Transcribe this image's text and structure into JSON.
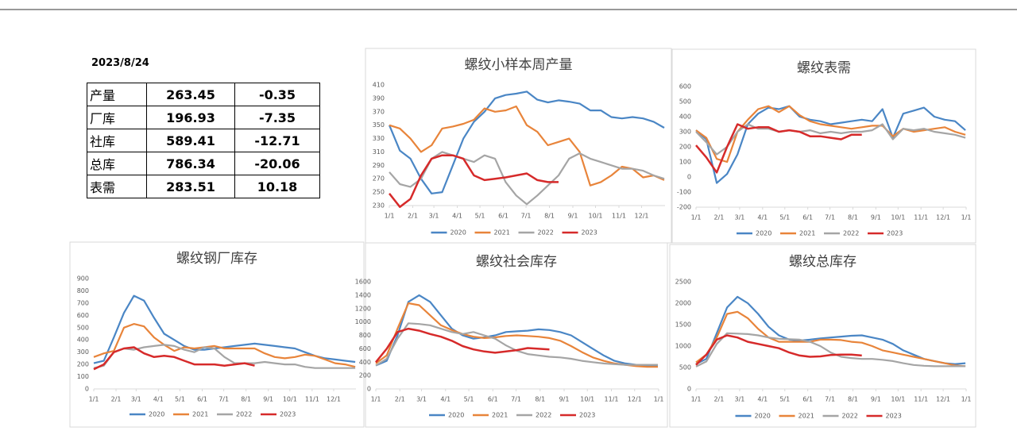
{
  "date": "2023/8/24",
  "table": {
    "rows": [
      [
        "产量",
        "263.45",
        "-0.35"
      ],
      [
        "厂库",
        "196.93",
        "-7.35"
      ],
      [
        "社库",
        "589.41",
        "-12.71"
      ],
      [
        "总库",
        "786.34",
        "-20.06"
      ],
      [
        "表需",
        "283.51",
        "10.18"
      ]
    ]
  },
  "chart_data": [
    {
      "type": "line",
      "title": "螺纹小样本周产量",
      "x": [
        0,
        14,
        28,
        42,
        56,
        70,
        84,
        98,
        112,
        126,
        140,
        154,
        168,
        182,
        196,
        210,
        224,
        238,
        252,
        266,
        280,
        294,
        308,
        322,
        336,
        350,
        364
      ],
      "xlim": [
        0,
        365
      ],
      "xticks": [
        {
          "value": 0,
          "label": "1/1"
        },
        {
          "value": 31,
          "label": "2/1"
        },
        {
          "value": 59,
          "label": "3/1"
        },
        {
          "value": 90,
          "label": "4/1"
        },
        {
          "value": 120,
          "label": "5/1"
        },
        {
          "value": 151,
          "label": "6/1"
        },
        {
          "value": 181,
          "label": "7/1"
        },
        {
          "value": 212,
          "label": "8/1"
        },
        {
          "value": 243,
          "label": "9/1"
        },
        {
          "value": 273,
          "label": "10/1"
        },
        {
          "value": 304,
          "label": "11/1"
        },
        {
          "value": 334,
          "label": "12/1"
        }
      ],
      "ylim": [
        230,
        410
      ],
      "yticks": [
        230,
        250,
        270,
        290,
        310,
        330,
        350,
        370,
        390,
        410
      ],
      "series": [
        {
          "name": "2020",
          "color": "#4a86c5",
          "values": [
            350,
            312,
            300,
            270,
            248,
            250,
            290,
            330,
            355,
            370,
            390,
            395,
            397,
            400,
            388,
            384,
            387,
            385,
            382,
            372,
            372,
            362,
            360,
            362,
            360,
            355,
            346
          ]
        },
        {
          "name": "2021",
          "color": "#e8843a",
          "values": [
            350,
            345,
            330,
            310,
            320,
            345,
            348,
            352,
            358,
            375,
            370,
            372,
            378,
            350,
            340,
            320,
            325,
            330,
            310,
            260,
            265,
            275,
            288,
            285,
            272,
            275,
            268
          ]
        },
        {
          "name": "2022",
          "color": "#a5a5a5",
          "values": [
            280,
            262,
            258,
            270,
            300,
            310,
            305,
            300,
            295,
            305,
            300,
            265,
            245,
            232,
            245,
            260,
            275,
            300,
            308,
            300,
            295,
            290,
            285,
            285,
            282,
            275,
            270
          ]
        },
        {
          "name": "2023",
          "color": "#d62a2a",
          "values": [
            248,
            228,
            240,
            275,
            300,
            305,
            305,
            300,
            275,
            268,
            270,
            272,
            275,
            278,
            268,
            265,
            265,
            null,
            null,
            null,
            null,
            null,
            null,
            null,
            null,
            null,
            null
          ]
        }
      ]
    },
    {
      "type": "line",
      "title": "螺纹表需",
      "x": [
        0,
        14,
        28,
        42,
        56,
        70,
        84,
        98,
        112,
        126,
        140,
        154,
        168,
        182,
        196,
        210,
        224,
        238,
        252,
        266,
        280,
        294,
        308,
        322,
        336,
        350,
        364
      ],
      "xlim": [
        0,
        365
      ],
      "xticks": [
        {
          "value": 0,
          "label": "1/1"
        },
        {
          "value": 31,
          "label": "2/1"
        },
        {
          "value": 59,
          "label": "3/1"
        },
        {
          "value": 90,
          "label": "4/1"
        },
        {
          "value": 120,
          "label": "5/1"
        },
        {
          "value": 151,
          "label": "6/1"
        },
        {
          "value": 181,
          "label": "7/1"
        },
        {
          "value": 212,
          "label": "8/1"
        },
        {
          "value": 243,
          "label": "9/1"
        },
        {
          "value": 273,
          "label": "10/1"
        },
        {
          "value": 304,
          "label": "11/1"
        },
        {
          "value": 334,
          "label": "12/1"
        },
        {
          "value": 365,
          "label": "1/1"
        }
      ],
      "ylim": [
        -200,
        600
      ],
      "yticks": [
        -200,
        -100,
        0,
        100,
        200,
        300,
        400,
        500,
        600
      ],
      "series": [
        {
          "name": "2020",
          "color": "#4a86c5",
          "values": [
            310,
            250,
            -40,
            20,
            150,
            350,
            420,
            460,
            450,
            470,
            400,
            380,
            370,
            350,
            360,
            370,
            380,
            370,
            450,
            260,
            420,
            440,
            460,
            400,
            380,
            370,
            310
          ]
        },
        {
          "name": "2021",
          "color": "#e8843a",
          "values": [
            310,
            260,
            120,
            100,
            300,
            380,
            450,
            470,
            430,
            470,
            410,
            370,
            350,
            340,
            330,
            320,
            330,
            340,
            340,
            270,
            320,
            300,
            310,
            320,
            330,
            300,
            280
          ]
        },
        {
          "name": "2022",
          "color": "#a5a5a5",
          "values": [
            300,
            230,
            150,
            200,
            300,
            350,
            320,
            320,
            300,
            310,
            300,
            310,
            290,
            300,
            290,
            300,
            300,
            310,
            350,
            250,
            320,
            310,
            320,
            300,
            290,
            280,
            260
          ]
        },
        {
          "name": "2023",
          "color": "#d62a2a",
          "values": [
            210,
            130,
            30,
            200,
            350,
            320,
            330,
            330,
            300,
            310,
            300,
            270,
            270,
            260,
            250,
            280,
            280,
            null,
            null,
            null,
            null,
            null,
            null,
            null,
            null,
            null,
            null
          ]
        }
      ]
    },
    {
      "type": "line",
      "title": "螺纹钢厂库存",
      "x": [
        0,
        14,
        28,
        42,
        56,
        70,
        84,
        98,
        112,
        126,
        140,
        154,
        168,
        182,
        196,
        210,
        224,
        238,
        252,
        266,
        280,
        294,
        308,
        322,
        336,
        350,
        364
      ],
      "xlim": [
        0,
        365
      ],
      "xticks": [
        {
          "value": 0,
          "label": "1/1"
        },
        {
          "value": 31,
          "label": "2/1"
        },
        {
          "value": 59,
          "label": "3/1"
        },
        {
          "value": 90,
          "label": "4/1"
        },
        {
          "value": 120,
          "label": "5/1"
        },
        {
          "value": 151,
          "label": "6/1"
        },
        {
          "value": 181,
          "label": "7/1"
        },
        {
          "value": 212,
          "label": "8/1"
        },
        {
          "value": 243,
          "label": "9/1"
        },
        {
          "value": 273,
          "label": "10/1"
        },
        {
          "value": 304,
          "label": "11/1"
        },
        {
          "value": 334,
          "label": "12/1"
        }
      ],
      "ylim": [
        0,
        900
      ],
      "yticks": [
        0,
        100,
        200,
        300,
        400,
        500,
        600,
        700,
        800,
        900
      ],
      "series": [
        {
          "name": "2020",
          "color": "#4a86c5",
          "values": [
            210,
            230,
            420,
            620,
            760,
            720,
            580,
            450,
            400,
            350,
            320,
            320,
            330,
            340,
            350,
            360,
            370,
            360,
            350,
            340,
            330,
            300,
            270,
            250,
            240,
            230,
            220
          ]
        },
        {
          "name": "2021",
          "color": "#e8843a",
          "values": [
            260,
            290,
            310,
            500,
            530,
            510,
            420,
            360,
            310,
            340,
            330,
            340,
            350,
            330,
            330,
            330,
            330,
            290,
            260,
            250,
            260,
            280,
            270,
            240,
            210,
            200,
            180
          ]
        },
        {
          "name": "2022",
          "color": "#a5a5a5",
          "values": [
            170,
            190,
            300,
            330,
            320,
            340,
            350,
            360,
            350,
            320,
            300,
            340,
            330,
            260,
            210,
            210,
            210,
            220,
            210,
            200,
            200,
            180,
            170,
            170,
            170,
            170,
            170
          ]
        },
        {
          "name": "2023",
          "color": "#d62a2a",
          "values": [
            160,
            200,
            300,
            330,
            340,
            290,
            260,
            270,
            260,
            230,
            200,
            200,
            200,
            190,
            200,
            210,
            190,
            null,
            null,
            null,
            null,
            null,
            null,
            null,
            null,
            null,
            null
          ]
        }
      ]
    },
    {
      "type": "line",
      "title": "螺纹社会库存",
      "x": [
        0,
        14,
        28,
        42,
        56,
        70,
        84,
        98,
        112,
        126,
        140,
        154,
        168,
        182,
        196,
        210,
        224,
        238,
        252,
        266,
        280,
        294,
        308,
        322,
        336,
        350,
        364
      ],
      "xlim": [
        0,
        365
      ],
      "xticks": [
        {
          "value": 0,
          "label": "1/1"
        },
        {
          "value": 31,
          "label": "2/1"
        },
        {
          "value": 59,
          "label": "3/1"
        },
        {
          "value": 90,
          "label": "4/1"
        },
        {
          "value": 120,
          "label": "5/1"
        },
        {
          "value": 151,
          "label": "6/1"
        },
        {
          "value": 181,
          "label": "7/1"
        },
        {
          "value": 212,
          "label": "8/1"
        },
        {
          "value": 243,
          "label": "9/1"
        },
        {
          "value": 273,
          "label": "10/1"
        },
        {
          "value": 304,
          "label": "11/1"
        },
        {
          "value": 334,
          "label": "12/1"
        },
        {
          "value": 365,
          "label": "1/1"
        }
      ],
      "ylim": [
        0,
        1600
      ],
      "yticks": [
        0,
        200,
        400,
        600,
        800,
        1000,
        1200,
        1400,
        1600
      ],
      "series": [
        {
          "name": "2020",
          "color": "#4a86c5",
          "values": [
            350,
            420,
            800,
            1300,
            1400,
            1300,
            1100,
            900,
            800,
            750,
            770,
            800,
            850,
            860,
            870,
            890,
            880,
            850,
            800,
            700,
            600,
            500,
            420,
            380,
            360,
            350,
            340
          ]
        },
        {
          "name": "2021",
          "color": "#e8843a",
          "values": [
            380,
            500,
            900,
            1280,
            1250,
            1100,
            950,
            880,
            820,
            780,
            760,
            770,
            790,
            800,
            790,
            780,
            760,
            720,
            640,
            550,
            470,
            420,
            380,
            360,
            340,
            330,
            330
          ]
        },
        {
          "name": "2022",
          "color": "#a5a5a5",
          "values": [
            350,
            450,
            750,
            980,
            970,
            950,
            900,
            850,
            820,
            850,
            800,
            750,
            650,
            570,
            520,
            500,
            480,
            470,
            450,
            420,
            400,
            380,
            370,
            360,
            360,
            360,
            360
          ]
        },
        {
          "name": "2023",
          "color": "#d62a2a",
          "values": [
            400,
            600,
            850,
            900,
            870,
            820,
            780,
            720,
            640,
            590,
            560,
            540,
            560,
            580,
            610,
            600,
            590,
            null,
            null,
            null,
            null,
            null,
            null,
            null,
            null,
            null,
            null
          ]
        }
      ]
    },
    {
      "type": "line",
      "title": "螺纹总库存",
      "x": [
        0,
        14,
        28,
        42,
        56,
        70,
        84,
        98,
        112,
        126,
        140,
        154,
        168,
        182,
        196,
        210,
        224,
        238,
        252,
        266,
        280,
        294,
        308,
        322,
        336,
        350,
        364
      ],
      "xlim": [
        0,
        365
      ],
      "xticks": [
        {
          "value": 0,
          "label": "1/1"
        },
        {
          "value": 31,
          "label": "2/1"
        },
        {
          "value": 59,
          "label": "3/1"
        },
        {
          "value": 90,
          "label": "4/1"
        },
        {
          "value": 120,
          "label": "5/1"
        },
        {
          "value": 151,
          "label": "6/1"
        },
        {
          "value": 181,
          "label": "7/1"
        },
        {
          "value": 212,
          "label": "8/1"
        },
        {
          "value": 243,
          "label": "9/1"
        },
        {
          "value": 273,
          "label": "10/1"
        },
        {
          "value": 304,
          "label": "11/1"
        },
        {
          "value": 334,
          "label": "12/1"
        },
        {
          "value": 365,
          "label": "1/1"
        }
      ],
      "ylim": [
        0,
        2500
      ],
      "yticks": [
        0,
        500,
        1000,
        1500,
        2000,
        2500
      ],
      "series": [
        {
          "name": "2020",
          "color": "#4a86c5",
          "values": [
            580,
            700,
            1300,
            1900,
            2150,
            2000,
            1750,
            1450,
            1250,
            1150,
            1130,
            1150,
            1180,
            1200,
            1220,
            1240,
            1250,
            1200,
            1150,
            1050,
            900,
            800,
            700,
            650,
            600,
            580,
            600
          ]
        },
        {
          "name": "2021",
          "color": "#e8843a",
          "values": [
            620,
            800,
            1200,
            1750,
            1800,
            1650,
            1400,
            1200,
            1100,
            1100,
            1100,
            1100,
            1150,
            1150,
            1140,
            1100,
            1080,
            1000,
            900,
            850,
            800,
            750,
            700,
            650,
            600,
            550,
            530
          ]
        },
        {
          "name": "2022",
          "color": "#a5a5a5",
          "values": [
            520,
            640,
            1050,
            1300,
            1290,
            1280,
            1250,
            1200,
            1170,
            1160,
            1150,
            1100,
            1000,
            850,
            750,
            720,
            700,
            700,
            680,
            650,
            600,
            560,
            540,
            530,
            530,
            530,
            530
          ]
        },
        {
          "name": "2023",
          "color": "#d62a2a",
          "values": [
            560,
            800,
            1150,
            1250,
            1200,
            1100,
            1050,
            1000,
            950,
            850,
            780,
            750,
            760,
            790,
            800,
            800,
            780,
            null,
            null,
            null,
            null,
            null,
            null,
            null,
            null,
            null,
            null
          ]
        }
      ]
    }
  ]
}
